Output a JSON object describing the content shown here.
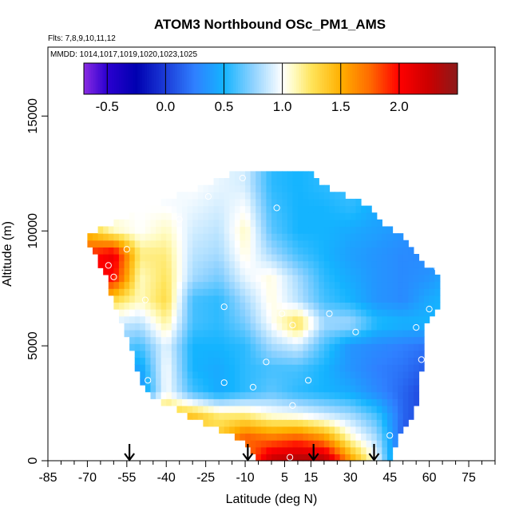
{
  "chart_data": {
    "type": "heatmap",
    "title": "ATOM3 Northbound OSc_PM1_AMS",
    "flights_label": "Flts: 7,8,9,10,11,12",
    "dates_label": "MMDD: 1014,1017,1019,1020,1023,1025",
    "xlabel": "Latitude (deg N)",
    "ylabel": "Altitude (m)",
    "xlim": [
      -85,
      85
    ],
    "ylim": [
      0,
      18000
    ],
    "x_major_ticks": [
      -85,
      -70,
      -55,
      -40,
      -25,
      -10,
      5,
      15,
      30,
      45,
      60,
      75
    ],
    "x_tick_labels": [
      "-85",
      "-70",
      "-55",
      "-40",
      "-25",
      "-10",
      "5",
      "15",
      "30",
      "45",
      "60",
      "75"
    ],
    "y_ticks": [
      0,
      5000,
      10000,
      15000
    ],
    "y_tick_labels": [
      "0",
      "5000",
      "10000",
      "15000"
    ],
    "colorbar": {
      "range": [
        -0.7,
        2.5
      ],
      "ticks": [
        -0.5,
        0.0,
        0.5,
        1.0,
        1.5,
        2.0
      ],
      "tick_labels": [
        "-0.5",
        "0.0",
        "0.5",
        "1.0",
        "1.5",
        "2.0"
      ],
      "divisions": [
        -0.5,
        0.0,
        0.5,
        1.0,
        1.5,
        2.0
      ],
      "stops": [
        {
          "v": -0.7,
          "c": "#8a2be2"
        },
        {
          "v": -0.5,
          "c": "#2b00d0"
        },
        {
          "v": -0.25,
          "c": "#0000b0"
        },
        {
          "v": 0.0,
          "c": "#1c3cd8"
        },
        {
          "v": 0.25,
          "c": "#2f80ff"
        },
        {
          "v": 0.5,
          "c": "#14b4ff"
        },
        {
          "v": 0.75,
          "c": "#8fd2ff"
        },
        {
          "v": 1.0,
          "c": "#ffffff"
        },
        {
          "v": 1.1,
          "c": "#fffbc0"
        },
        {
          "v": 1.25,
          "c": "#ffe45a"
        },
        {
          "v": 1.5,
          "c": "#ffb000"
        },
        {
          "v": 1.75,
          "c": "#ff6a00"
        },
        {
          "v": 2.0,
          "c": "#ff0000"
        },
        {
          "v": 2.25,
          "c": "#cc0000"
        },
        {
          "v": 2.5,
          "c": "#8b1a1a"
        }
      ]
    },
    "profile_latitudes": [
      -54,
      -9,
      16,
      39
    ],
    "envelope": [
      {
        "alt": 0,
        "lat_min": -4,
        "lat_max": 46
      },
      {
        "alt": 1000,
        "lat_min": -13,
        "lat_max": 48
      },
      {
        "alt": 2000,
        "lat_min": -33,
        "lat_max": 54
      },
      {
        "alt": 3000,
        "lat_min": -48,
        "lat_max": 56
      },
      {
        "alt": 4000,
        "lat_min": -51,
        "lat_max": 57
      },
      {
        "alt": 5000,
        "lat_min": -54,
        "lat_max": 58
      },
      {
        "alt": 6000,
        "lat_min": -57,
        "lat_max": 59
      },
      {
        "alt": 7000,
        "lat_min": -60,
        "lat_max": 65
      },
      {
        "alt": 8000,
        "lat_min": -63,
        "lat_max": 63
      },
      {
        "alt": 9000,
        "lat_min": -67,
        "lat_max": 55
      },
      {
        "alt": 9800,
        "lat_min": -71,
        "lat_max": 50
      },
      {
        "alt": 10500,
        "lat_min": -56,
        "lat_max": 41
      },
      {
        "alt": 11200,
        "lat_min": -43,
        "lat_max": 35
      },
      {
        "alt": 11800,
        "lat_min": -30,
        "lat_max": 23
      },
      {
        "alt": 12400,
        "lat_min": -15,
        "lat_max": 15
      }
    ],
    "profile_values": [
      {
        "lat": -70,
        "v": [
          1.3,
          1.3,
          1.5,
          1.5,
          1.4,
          1.4,
          1.4,
          1.6,
          2.0,
          1.9,
          1.4,
          1.1,
          1.0
        ]
      },
      {
        "lat": -60,
        "v": [
          1.3,
          1.3,
          1.5,
          0.5,
          0.55,
          0.7,
          0.9,
          1.3,
          2.0,
          2.1,
          1.1,
          1.0,
          0.95
        ]
      },
      {
        "lat": -50,
        "v": [
          1.3,
          1.3,
          1.4,
          0.3,
          0.4,
          0.6,
          0.85,
          1.1,
          1.1,
          1.2,
          1.0,
          1.0,
          0.95
        ]
      },
      {
        "lat": -40,
        "v": [
          1.3,
          1.3,
          1.4,
          1.0,
          1.0,
          0.95,
          1.15,
          1.3,
          1.25,
          1.2,
          1.1,
          1.0,
          0.95
        ]
      },
      {
        "lat": -30,
        "v": [
          1.3,
          1.3,
          1.4,
          0.6,
          0.5,
          0.5,
          0.6,
          0.6,
          0.8,
          0.85,
          0.9,
          0.95,
          1.0
        ]
      },
      {
        "lat": -20,
        "v": [
          1.4,
          1.4,
          1.2,
          0.45,
          0.45,
          0.5,
          0.55,
          0.55,
          0.7,
          0.8,
          0.85,
          0.9,
          0.95
        ]
      },
      {
        "lat": -10,
        "v": [
          1.6,
          1.8,
          1.2,
          0.55,
          0.55,
          0.55,
          0.7,
          0.8,
          0.95,
          1.05,
          1.1,
          1.0,
          0.9
        ]
      },
      {
        "lat": 0,
        "v": [
          2.3,
          1.7,
          1.05,
          0.65,
          0.6,
          0.8,
          1.0,
          1.05,
          1.05,
          0.8,
          0.65,
          0.6,
          0.55
        ]
      },
      {
        "lat": 10,
        "v": [
          2.4,
          1.8,
          1.0,
          0.55,
          0.6,
          0.9,
          1.3,
          0.85,
          0.8,
          0.6,
          0.5,
          0.5,
          0.5
        ]
      },
      {
        "lat": 20,
        "v": [
          2.4,
          1.6,
          0.9,
          0.5,
          0.5,
          0.6,
          0.8,
          0.6,
          0.55,
          0.5,
          0.5,
          0.5,
          0.55
        ]
      },
      {
        "lat": 30,
        "v": [
          1.6,
          1.1,
          0.8,
          0.45,
          0.35,
          0.35,
          0.8,
          0.5,
          0.45,
          0.4,
          0.45,
          0.55,
          0.6
        ]
      },
      {
        "lat": 40,
        "v": [
          1.0,
          0.8,
          0.6,
          0.3,
          0.25,
          0.3,
          0.55,
          0.35,
          0.35,
          0.35,
          0.4,
          0.45,
          0.5
        ]
      },
      {
        "lat": 50,
        "v": [
          0.0,
          0.1,
          0.15,
          0.15,
          0.2,
          0.25,
          0.5,
          0.3,
          0.3,
          0.3,
          0.35,
          0.4,
          0.45
        ]
      },
      {
        "lat": 60,
        "v": [
          -0.2,
          0.0,
          0.0,
          0.0,
          0.1,
          0.2,
          0.5,
          0.45,
          0.35,
          0.3,
          0.3,
          0.35,
          0.4
        ]
      },
      {
        "lat": 70,
        "v": [
          -0.3,
          -0.1,
          -0.1,
          -0.1,
          0.0,
          0.2,
          0.5,
          0.55,
          0.5,
          0.35,
          0.3,
          0.3,
          0.3
        ]
      }
    ],
    "profile_altitudes": [
      0,
      1000,
      2000,
      3000,
      4000,
      5000,
      6000,
      7000,
      8000,
      9000,
      10000,
      11000,
      12000
    ],
    "sample_points": [
      {
        "lat": -62,
        "alt": 8500
      },
      {
        "lat": -60,
        "alt": 8000
      },
      {
        "lat": -55,
        "alt": 9200
      },
      {
        "lat": -51,
        "alt": 3100
      },
      {
        "lat": -47,
        "alt": 3500
      },
      {
        "lat": -48,
        "alt": 7000
      },
      {
        "lat": -35,
        "alt": 10500
      },
      {
        "lat": -24,
        "alt": 11500
      },
      {
        "lat": -18,
        "alt": 6700
      },
      {
        "lat": -18,
        "alt": 3400
      },
      {
        "lat": -7,
        "alt": 3200
      },
      {
        "lat": -2,
        "alt": 4300
      },
      {
        "lat": 2,
        "alt": 11000
      },
      {
        "lat": 4,
        "alt": 6400
      },
      {
        "lat": 8,
        "alt": 5900
      },
      {
        "lat": 8,
        "alt": 2400
      },
      {
        "lat": 14,
        "alt": 3500
      },
      {
        "lat": 22,
        "alt": 6400
      },
      {
        "lat": 32,
        "alt": 5600
      },
      {
        "lat": 45,
        "alt": 1100
      },
      {
        "lat": 55,
        "alt": 5800
      },
      {
        "lat": 57,
        "alt": 4400
      },
      {
        "lat": 60,
        "alt": 6600
      },
      {
        "lat": 63,
        "alt": 8400
      },
      {
        "lat": 68,
        "alt": 6700
      },
      {
        "lat": 65,
        "alt": 4800
      },
      {
        "lat": 55,
        "alt": 600
      },
      {
        "lat": 7,
        "alt": 150
      },
      {
        "lat": -9,
        "alt": 150
      },
      {
        "lat": -11,
        "alt": 12300
      }
    ]
  }
}
